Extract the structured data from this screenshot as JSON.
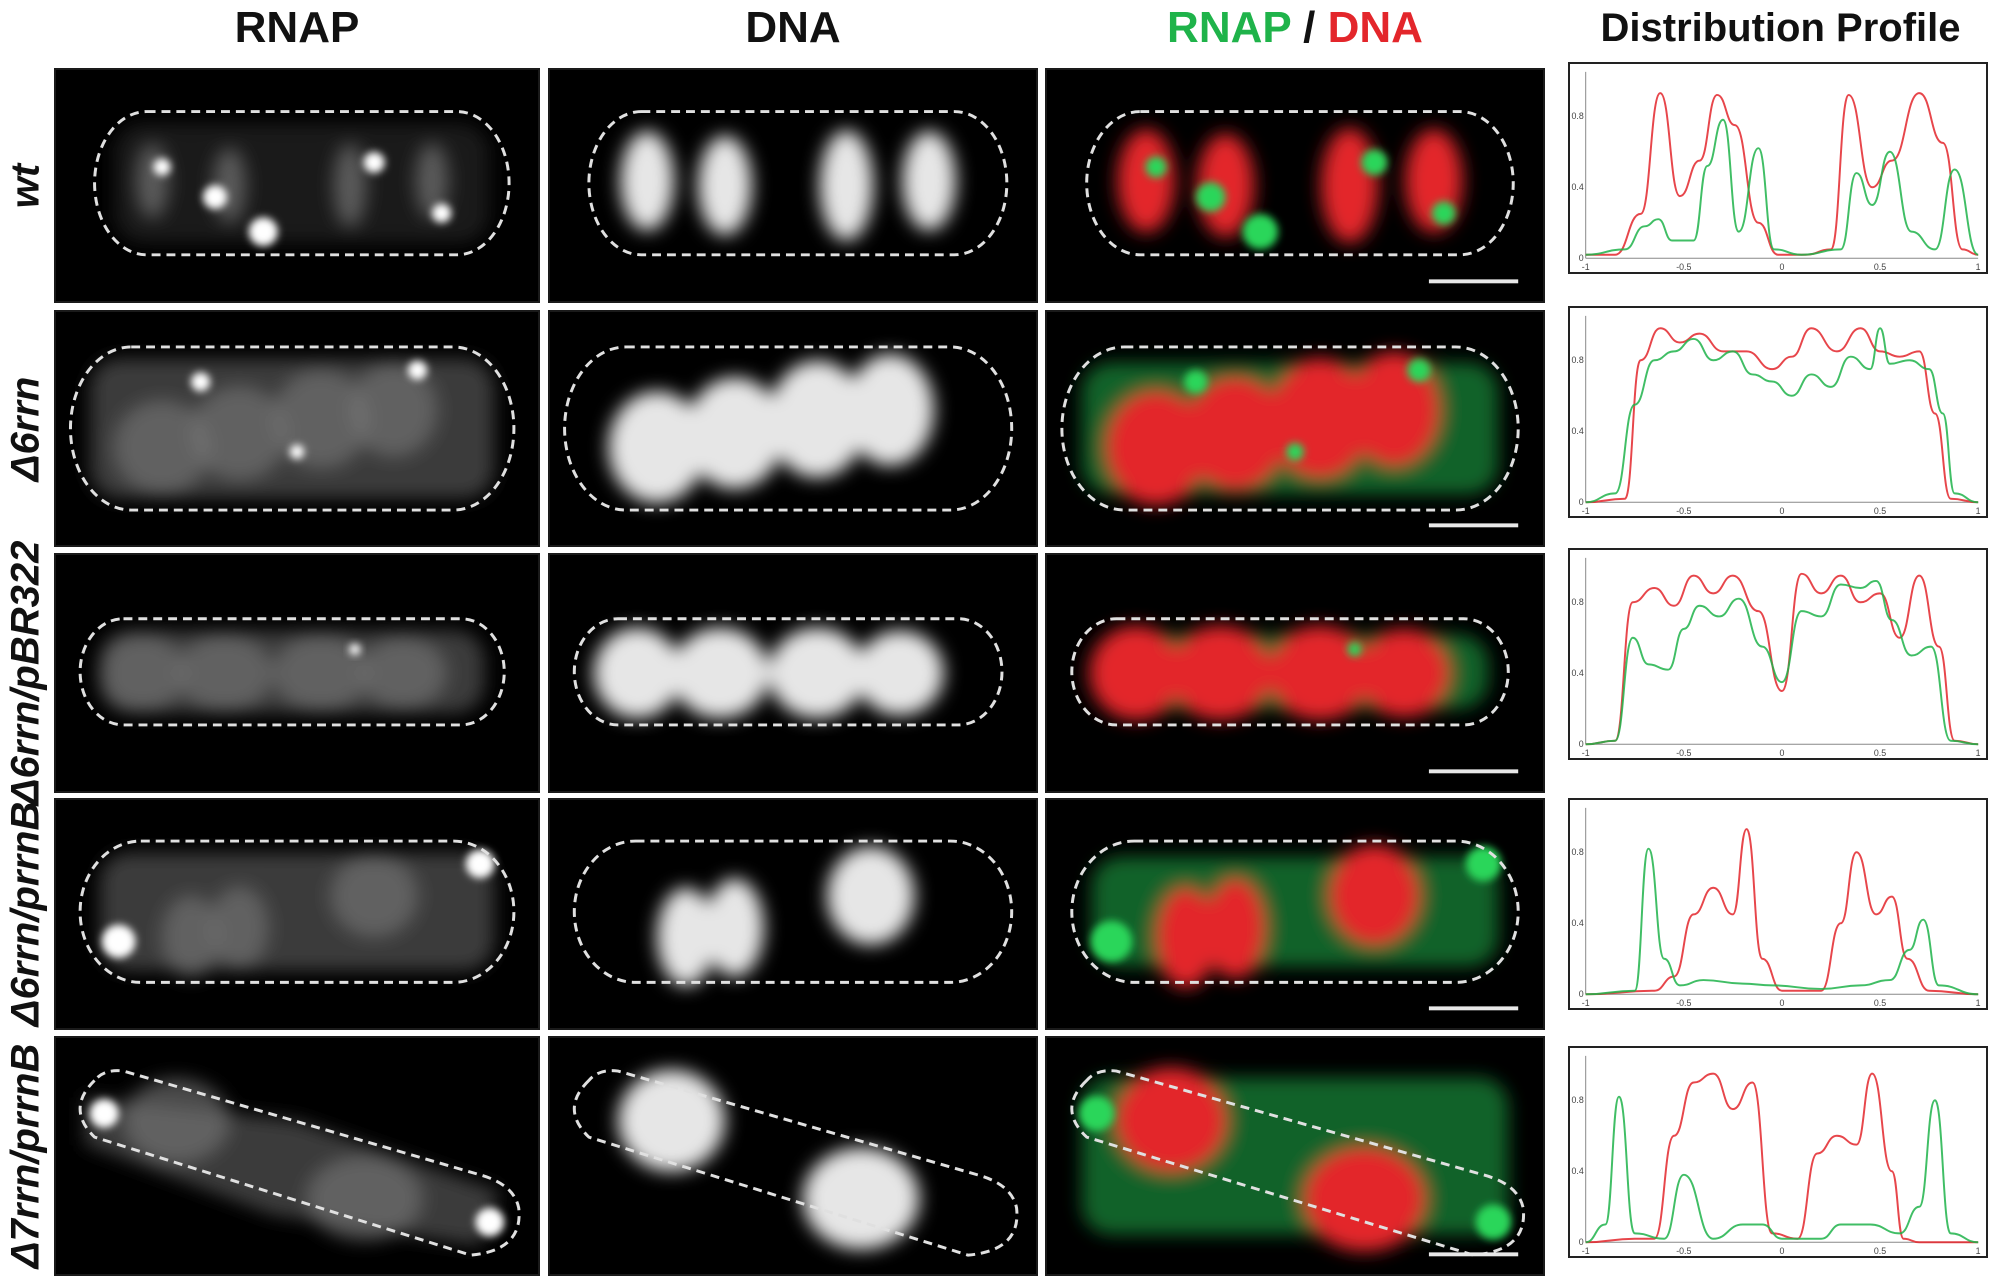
{
  "columns": {
    "rnap": "RNAP",
    "dna": "DNA",
    "merge_green": "RNAP",
    "merge_sep": " / ",
    "merge_red": "DNA",
    "profile": "Distribution Profile"
  },
  "rows": [
    {
      "label": "wt"
    },
    {
      "label": "Δ6rrn"
    },
    {
      "label": "Δ6rrn/pBR322"
    },
    {
      "label": "Δ6rrn/prrnB"
    },
    {
      "label": "Δ7rrn/prrnB"
    }
  ],
  "colors": {
    "rnap": "#1fb34a",
    "dna": "#e3262b",
    "outline": "#e0e0e0"
  },
  "chart_data": [
    {
      "type": "line",
      "x_ticks": [
        "-1",
        "-0.5",
        "0",
        "0.5",
        "1"
      ],
      "y_ticks": [
        "0",
        "0.4",
        "0.8"
      ],
      "xlim": [
        -1,
        1
      ],
      "ylim": [
        0,
        1.05
      ],
      "series": [
        {
          "color": "#e3262b",
          "x": [
            -1,
            -0.85,
            -0.72,
            -0.62,
            -0.52,
            -0.42,
            -0.33,
            -0.24,
            -0.12,
            -0.02,
            0.12,
            0.25,
            0.34,
            0.46,
            0.56,
            0.7,
            0.82,
            0.92,
            1
          ],
          "y": [
            0.02,
            0.02,
            0.25,
            0.93,
            0.35,
            0.55,
            0.92,
            0.75,
            0.2,
            0.02,
            0.02,
            0.05,
            0.92,
            0.4,
            0.55,
            0.93,
            0.65,
            0.05,
            0.02
          ]
        },
        {
          "color": "#1fb34a",
          "x": [
            -1,
            -0.8,
            -0.7,
            -0.63,
            -0.56,
            -0.45,
            -0.38,
            -0.3,
            -0.22,
            -0.12,
            -0.04,
            0.1,
            0.3,
            0.38,
            0.46,
            0.55,
            0.66,
            0.78,
            0.88,
            1
          ],
          "y": [
            0.02,
            0.05,
            0.18,
            0.22,
            0.1,
            0.1,
            0.52,
            0.78,
            0.15,
            0.62,
            0.05,
            0.02,
            0.05,
            0.48,
            0.3,
            0.6,
            0.15,
            0.05,
            0.5,
            0.02
          ]
        }
      ]
    },
    {
      "type": "line",
      "x_ticks": [
        "-1",
        "-0.5",
        "0",
        "0.5",
        "1"
      ],
      "y_ticks": [
        "0",
        "0.4",
        "0.8"
      ],
      "xlim": [
        -1,
        1
      ],
      "ylim": [
        0,
        1.05
      ],
      "series": [
        {
          "color": "#e3262b",
          "x": [
            -1,
            -0.8,
            -0.72,
            -0.62,
            -0.52,
            -0.42,
            -0.3,
            -0.18,
            -0.05,
            0.05,
            0.15,
            0.28,
            0.4,
            0.5,
            0.6,
            0.7,
            0.78,
            0.86,
            1
          ],
          "y": [
            0,
            0.02,
            0.8,
            0.98,
            0.9,
            0.95,
            0.85,
            0.85,
            0.75,
            0.82,
            0.98,
            0.85,
            0.98,
            0.85,
            0.82,
            0.85,
            0.5,
            0.02,
            0
          ],
          "_n": 1
        },
        {
          "color": "#1fb34a",
          "x": [
            -1,
            -0.85,
            -0.75,
            -0.65,
            -0.55,
            -0.45,
            -0.35,
            -0.25,
            -0.15,
            -0.05,
            0.05,
            0.15,
            0.25,
            0.35,
            0.45,
            0.5,
            0.55,
            0.65,
            0.75,
            0.82,
            0.88,
            1
          ],
          "y": [
            0,
            0.05,
            0.55,
            0.8,
            0.85,
            0.92,
            0.8,
            0.85,
            0.72,
            0.68,
            0.6,
            0.72,
            0.65,
            0.82,
            0.75,
            0.98,
            0.78,
            0.8,
            0.75,
            0.5,
            0.05,
            0
          ]
        }
      ]
    },
    {
      "type": "line",
      "x_ticks": [
        "-1",
        "-0.5",
        "0",
        "0.5",
        "1"
      ],
      "y_ticks": [
        "0",
        "0.4",
        "0.8"
      ],
      "xlim": [
        -1,
        1
      ],
      "ylim": [
        0,
        1.05
      ],
      "series": [
        {
          "color": "#e3262b",
          "x": [
            -1,
            -0.85,
            -0.76,
            -0.65,
            -0.55,
            -0.45,
            -0.35,
            -0.25,
            -0.12,
            0,
            0.1,
            0.2,
            0.3,
            0.4,
            0.5,
            0.6,
            0.7,
            0.8,
            0.88,
            1
          ],
          "y": [
            0,
            0.02,
            0.8,
            0.88,
            0.78,
            0.95,
            0.85,
            0.95,
            0.75,
            0.3,
            0.96,
            0.85,
            0.95,
            0.8,
            0.85,
            0.6,
            0.95,
            0.55,
            0.02,
            0
          ]
        },
        {
          "color": "#1fb34a",
          "x": [
            -1,
            -0.85,
            -0.76,
            -0.68,
            -0.58,
            -0.5,
            -0.42,
            -0.32,
            -0.22,
            -0.1,
            0,
            0.1,
            0.2,
            0.3,
            0.4,
            0.48,
            0.56,
            0.66,
            0.76,
            0.86,
            1
          ],
          "y": [
            0,
            0.02,
            0.6,
            0.45,
            0.42,
            0.65,
            0.78,
            0.72,
            0.82,
            0.55,
            0.35,
            0.75,
            0.72,
            0.9,
            0.88,
            0.92,
            0.7,
            0.5,
            0.55,
            0.02,
            0
          ]
        }
      ]
    },
    {
      "type": "line",
      "x_ticks": [
        "-1",
        "-0.5",
        "0",
        "0.5",
        "1"
      ],
      "y_ticks": [
        "0",
        "0.4",
        "0.8"
      ],
      "xlim": [
        -1,
        1
      ],
      "ylim": [
        0,
        1.05
      ],
      "series": [
        {
          "color": "#e3262b",
          "x": [
            -1,
            -0.65,
            -0.55,
            -0.45,
            -0.35,
            -0.25,
            -0.18,
            -0.1,
            0,
            0.2,
            0.3,
            0.38,
            0.48,
            0.56,
            0.64,
            0.75,
            1
          ],
          "y": [
            0,
            0.02,
            0.1,
            0.45,
            0.6,
            0.45,
            0.93,
            0.2,
            0.02,
            0.02,
            0.4,
            0.8,
            0.45,
            0.55,
            0.2,
            0.02,
            0
          ]
        },
        {
          "color": "#1fb34a",
          "x": [
            -1,
            -0.75,
            -0.68,
            -0.6,
            -0.52,
            -0.4,
            -0.2,
            -0.05,
            0.2,
            0.4,
            0.55,
            0.65,
            0.72,
            0.8,
            1
          ],
          "y": [
            0,
            0.02,
            0.82,
            0.2,
            0.05,
            0.08,
            0.06,
            0.05,
            0.03,
            0.05,
            0.08,
            0.25,
            0.42,
            0.05,
            0
          ]
        }
      ]
    },
    {
      "type": "line",
      "x_ticks": [
        "-1",
        "-0.5",
        "0",
        "0.5",
        "1"
      ],
      "y_ticks": [
        "0",
        "0.4",
        "0.8"
      ],
      "xlim": [
        -1,
        1
      ],
      "ylim": [
        0,
        1.05
      ],
      "series": [
        {
          "color": "#e3262b",
          "x": [
            -1,
            -0.75,
            -0.65,
            -0.55,
            -0.45,
            -0.35,
            -0.25,
            -0.15,
            -0.05,
            0.08,
            0.18,
            0.28,
            0.38,
            0.46,
            0.56,
            0.62,
            0.7,
            1
          ],
          "y": [
            0,
            0.02,
            0.02,
            0.6,
            0.9,
            0.95,
            0.75,
            0.9,
            0.05,
            0.02,
            0.5,
            0.6,
            0.55,
            0.95,
            0.4,
            0.02,
            0,
            0
          ]
        },
        {
          "color": "#1fb34a",
          "x": [
            -1,
            -0.9,
            -0.83,
            -0.75,
            -0.6,
            -0.5,
            -0.35,
            -0.2,
            -0.1,
            0,
            0.2,
            0.3,
            0.45,
            0.6,
            0.7,
            0.78,
            0.86,
            1
          ],
          "y": [
            0,
            0.1,
            0.82,
            0.05,
            0.02,
            0.38,
            0.02,
            0.1,
            0.1,
            0.02,
            0.02,
            0.1,
            0.1,
            0.05,
            0.2,
            0.8,
            0.05,
            0
          ]
        }
      ]
    }
  ]
}
